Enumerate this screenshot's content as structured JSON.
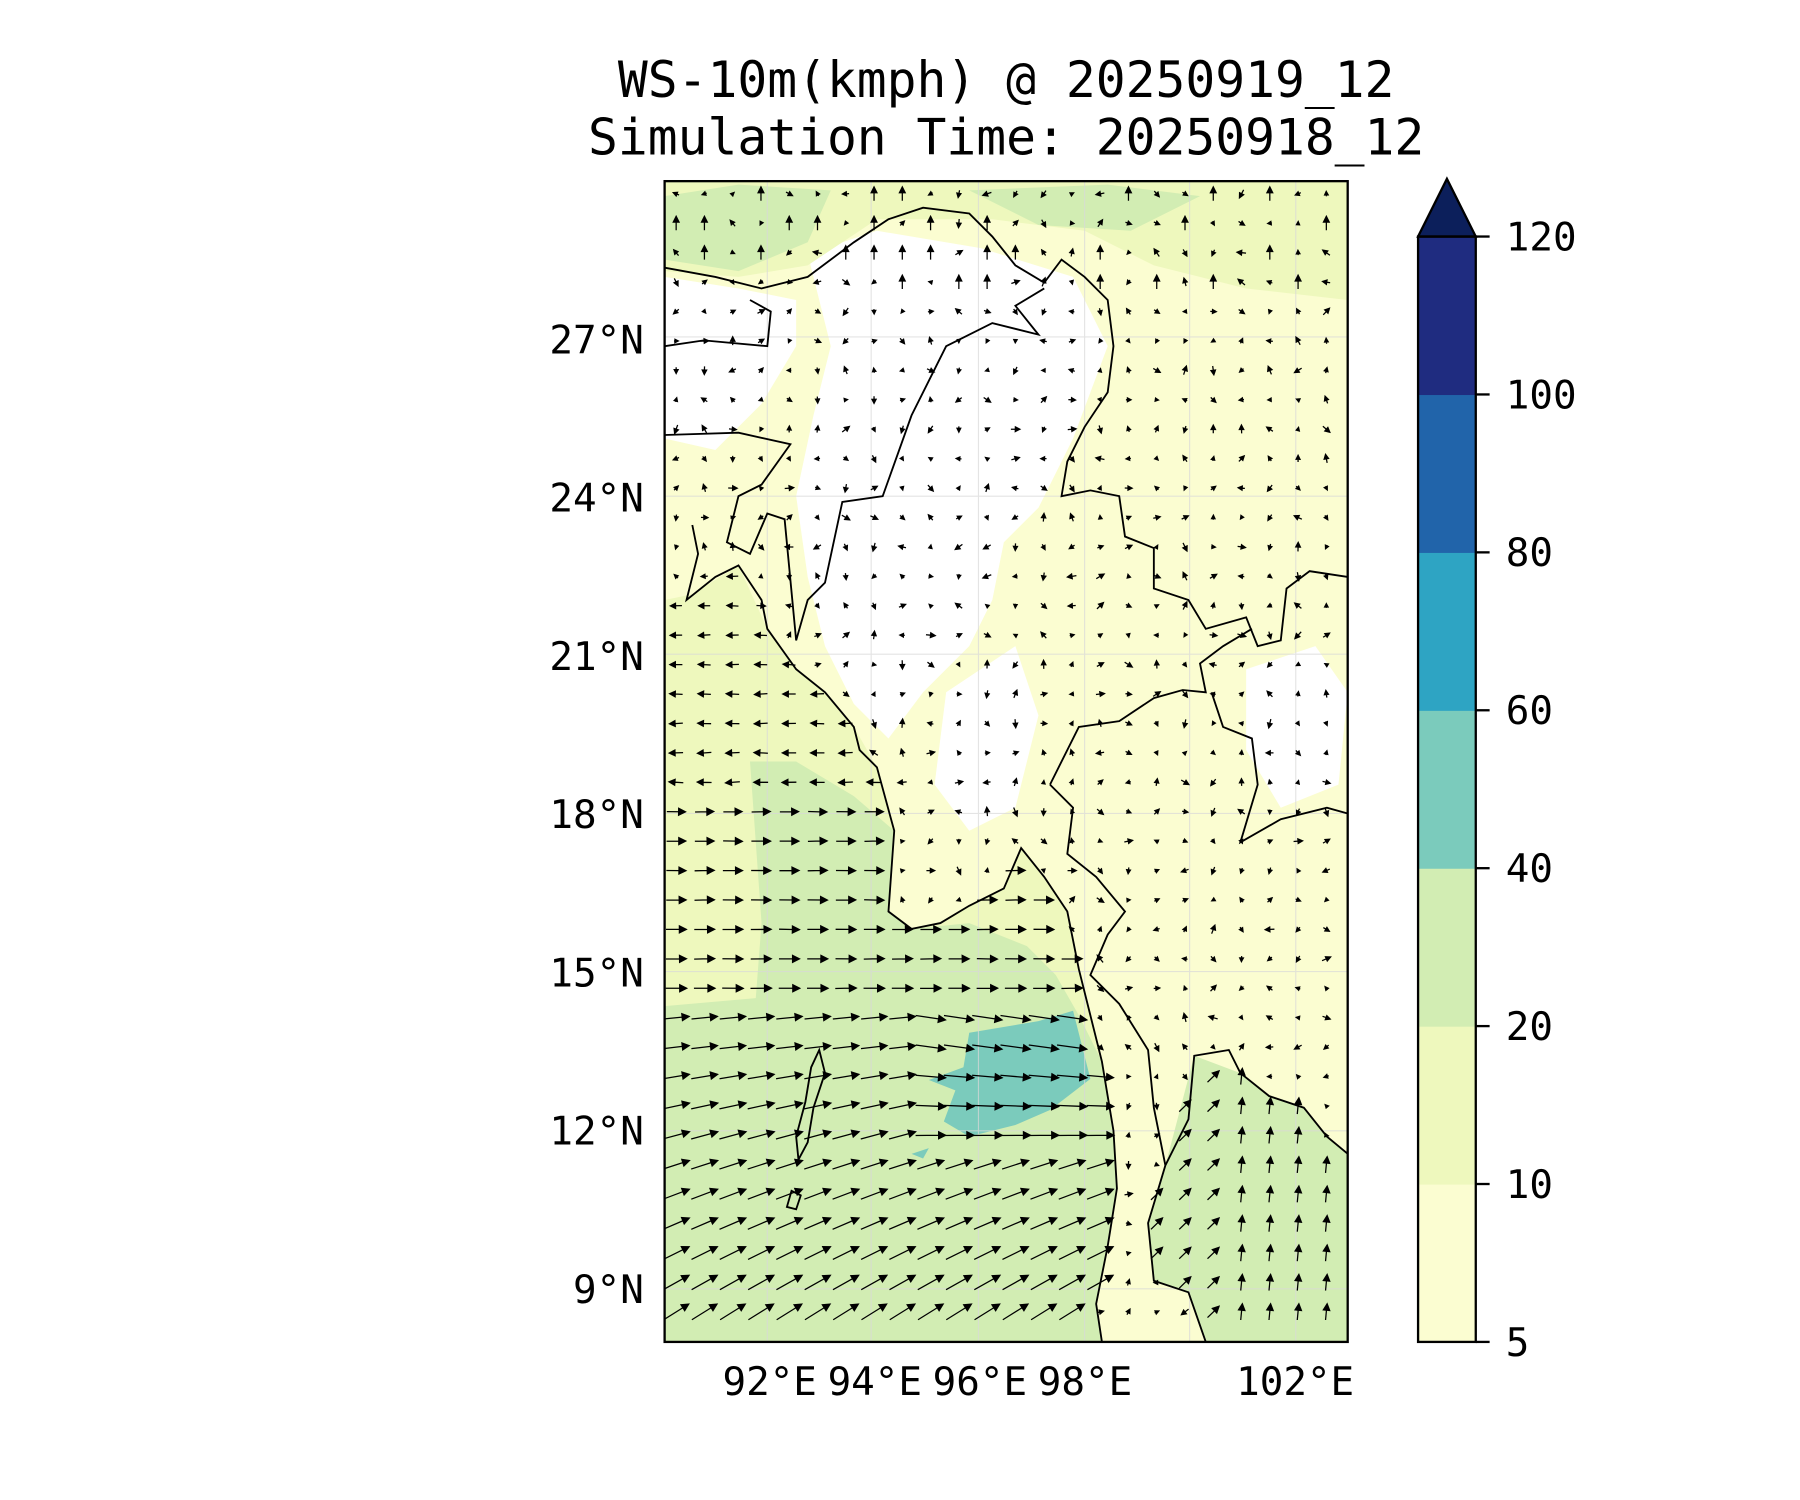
{
  "chart_data": {
    "type": "heatmap",
    "title": [
      "WS-10m(kmph) @ 20250919_12",
      "Simulation Time: 20250918_12"
    ],
    "variable": "WS-10m(kmph)",
    "valid_time": "20250919_12",
    "simulation_time": "20250918_12",
    "lat_range": [
      8,
      30
    ],
    "lon_range": [
      90,
      103
    ],
    "lat_ticks": [
      {
        "value": 27,
        "label": "27°N"
      },
      {
        "value": 24,
        "label": "24°N"
      },
      {
        "value": 21,
        "label": "21°N"
      },
      {
        "value": 18,
        "label": "18°N"
      },
      {
        "value": 15,
        "label": "15°N"
      },
      {
        "value": 12,
        "label": "12°N"
      },
      {
        "value": 9,
        "label": "9°N"
      }
    ],
    "lon_ticks": [
      {
        "value": 92,
        "label": "92°E"
      },
      {
        "value": 94,
        "label": "94°E"
      },
      {
        "value": 96,
        "label": "96°E"
      },
      {
        "value": 98,
        "label": "98°E"
      },
      {
        "value": 102,
        "label": "102°E"
      }
    ],
    "grid": true,
    "colorbar": {
      "levels": [
        5,
        10,
        20,
        40,
        60,
        80,
        100,
        120
      ],
      "labels": [
        "5",
        "10",
        "20",
        "40",
        "60",
        "80",
        "100",
        "120"
      ],
      "colors": [
        "#fbfdd1",
        "#eef8bd",
        "#d2edb3",
        "#7bcbbc",
        "#2ea4c3",
        "#2164aa",
        "#1f2c80"
      ],
      "extend_max_color": "#0c1f5b",
      "placement": "right"
    },
    "fill_colors": {
      "calm": "#ffffff",
      "band_5_10": "#fbfdd1",
      "band_10_20": "#eef8bd",
      "band_20_40": "#d2edb3",
      "band_40_60": "#7bcbbc"
    },
    "max_region_kmph": [
      40,
      60
    ]
  }
}
